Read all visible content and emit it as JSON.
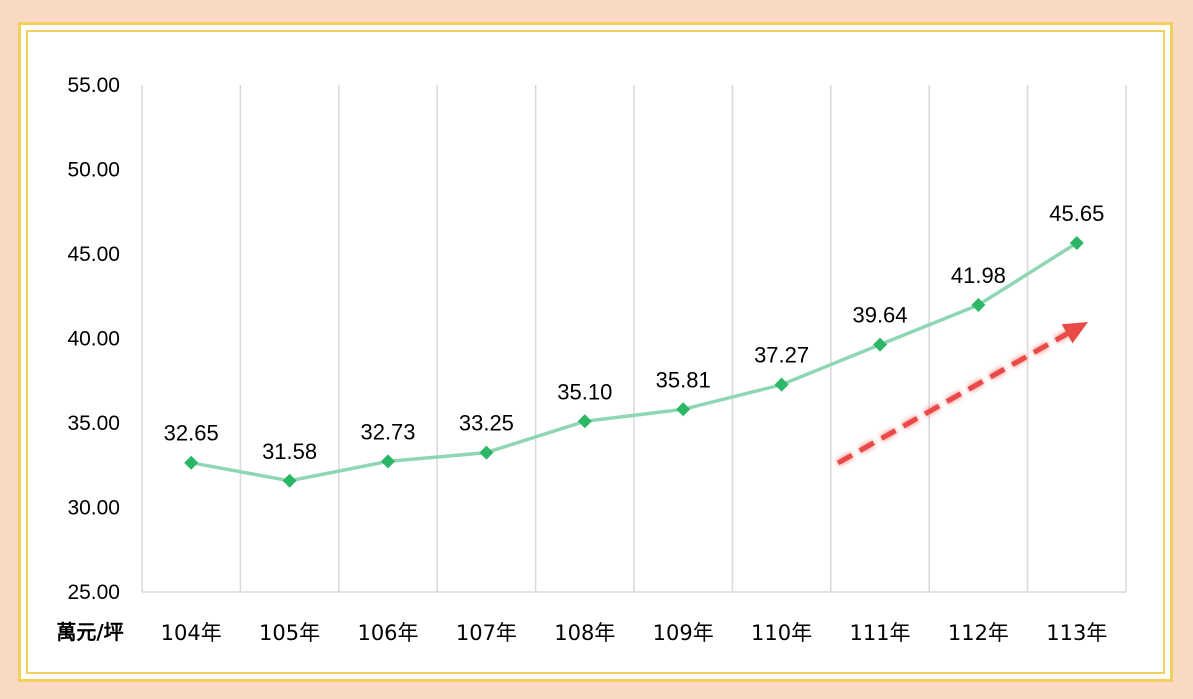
{
  "chart_data": {
    "type": "line",
    "title": "",
    "xlabel": "",
    "ylabel": "萬元/坪",
    "categories": [
      "104年",
      "105年",
      "106年",
      "107年",
      "108年",
      "109年",
      "110年",
      "111年",
      "112年",
      "113年"
    ],
    "series": [
      {
        "values": [
          32.65,
          31.58,
          32.73,
          33.25,
          35.1,
          35.81,
          37.27,
          39.64,
          41.98,
          45.65
        ],
        "labels": [
          "32.65",
          "31.58",
          "32.73",
          "33.25",
          "35.10",
          "35.81",
          "37.27",
          "39.64",
          "41.98",
          "45.65"
        ],
        "color": "#8fd6b4",
        "marker_color": "#2bb766"
      }
    ],
    "ylim": [
      25,
      55
    ],
    "yticks": [
      "25.00",
      "30.00",
      "35.00",
      "40.00",
      "45.00",
      "50.00",
      "55.00"
    ],
    "grid": "vertical",
    "legend": "none",
    "annotation": {
      "type": "dashed-arrow",
      "direction": "up-right",
      "color": "#e94a47"
    }
  },
  "colors": {
    "background": "#f9d9c4",
    "frame": "#f3d05c",
    "grid": "#d9d9d9"
  }
}
